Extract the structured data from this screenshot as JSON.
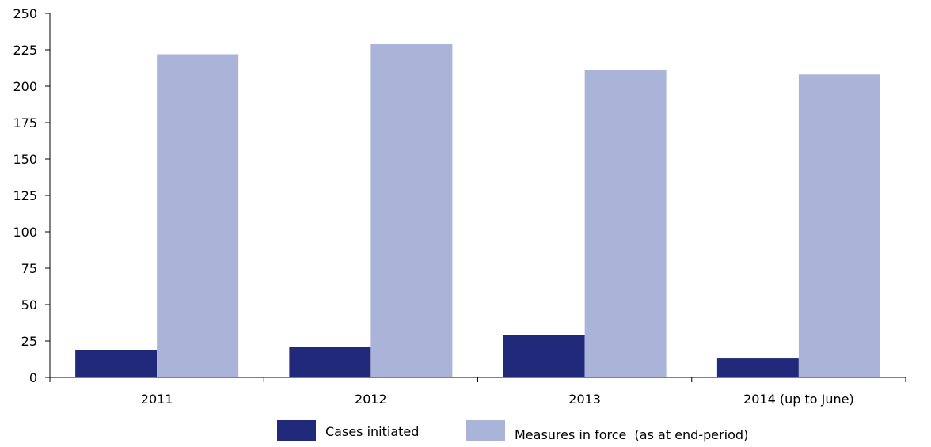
{
  "chart_data": {
    "type": "bar",
    "title": "",
    "xlabel": "",
    "ylabel": "",
    "categories": [
      "2011",
      "2012",
      "2013",
      "2014 (up to June)"
    ],
    "series": [
      {
        "name": "Cases initiated",
        "color": "#21297a",
        "values": [
          19,
          21,
          29,
          13
        ]
      },
      {
        "name": "Measures in force  (as at end-period)",
        "color": "#aab4d8",
        "values": [
          222,
          229,
          211,
          208
        ]
      }
    ],
    "ylim": [
      0,
      250
    ],
    "yticks": [
      0,
      25,
      50,
      75,
      100,
      125,
      150,
      175,
      200,
      225,
      250
    ],
    "grid": false,
    "legend_position": "bottom"
  }
}
